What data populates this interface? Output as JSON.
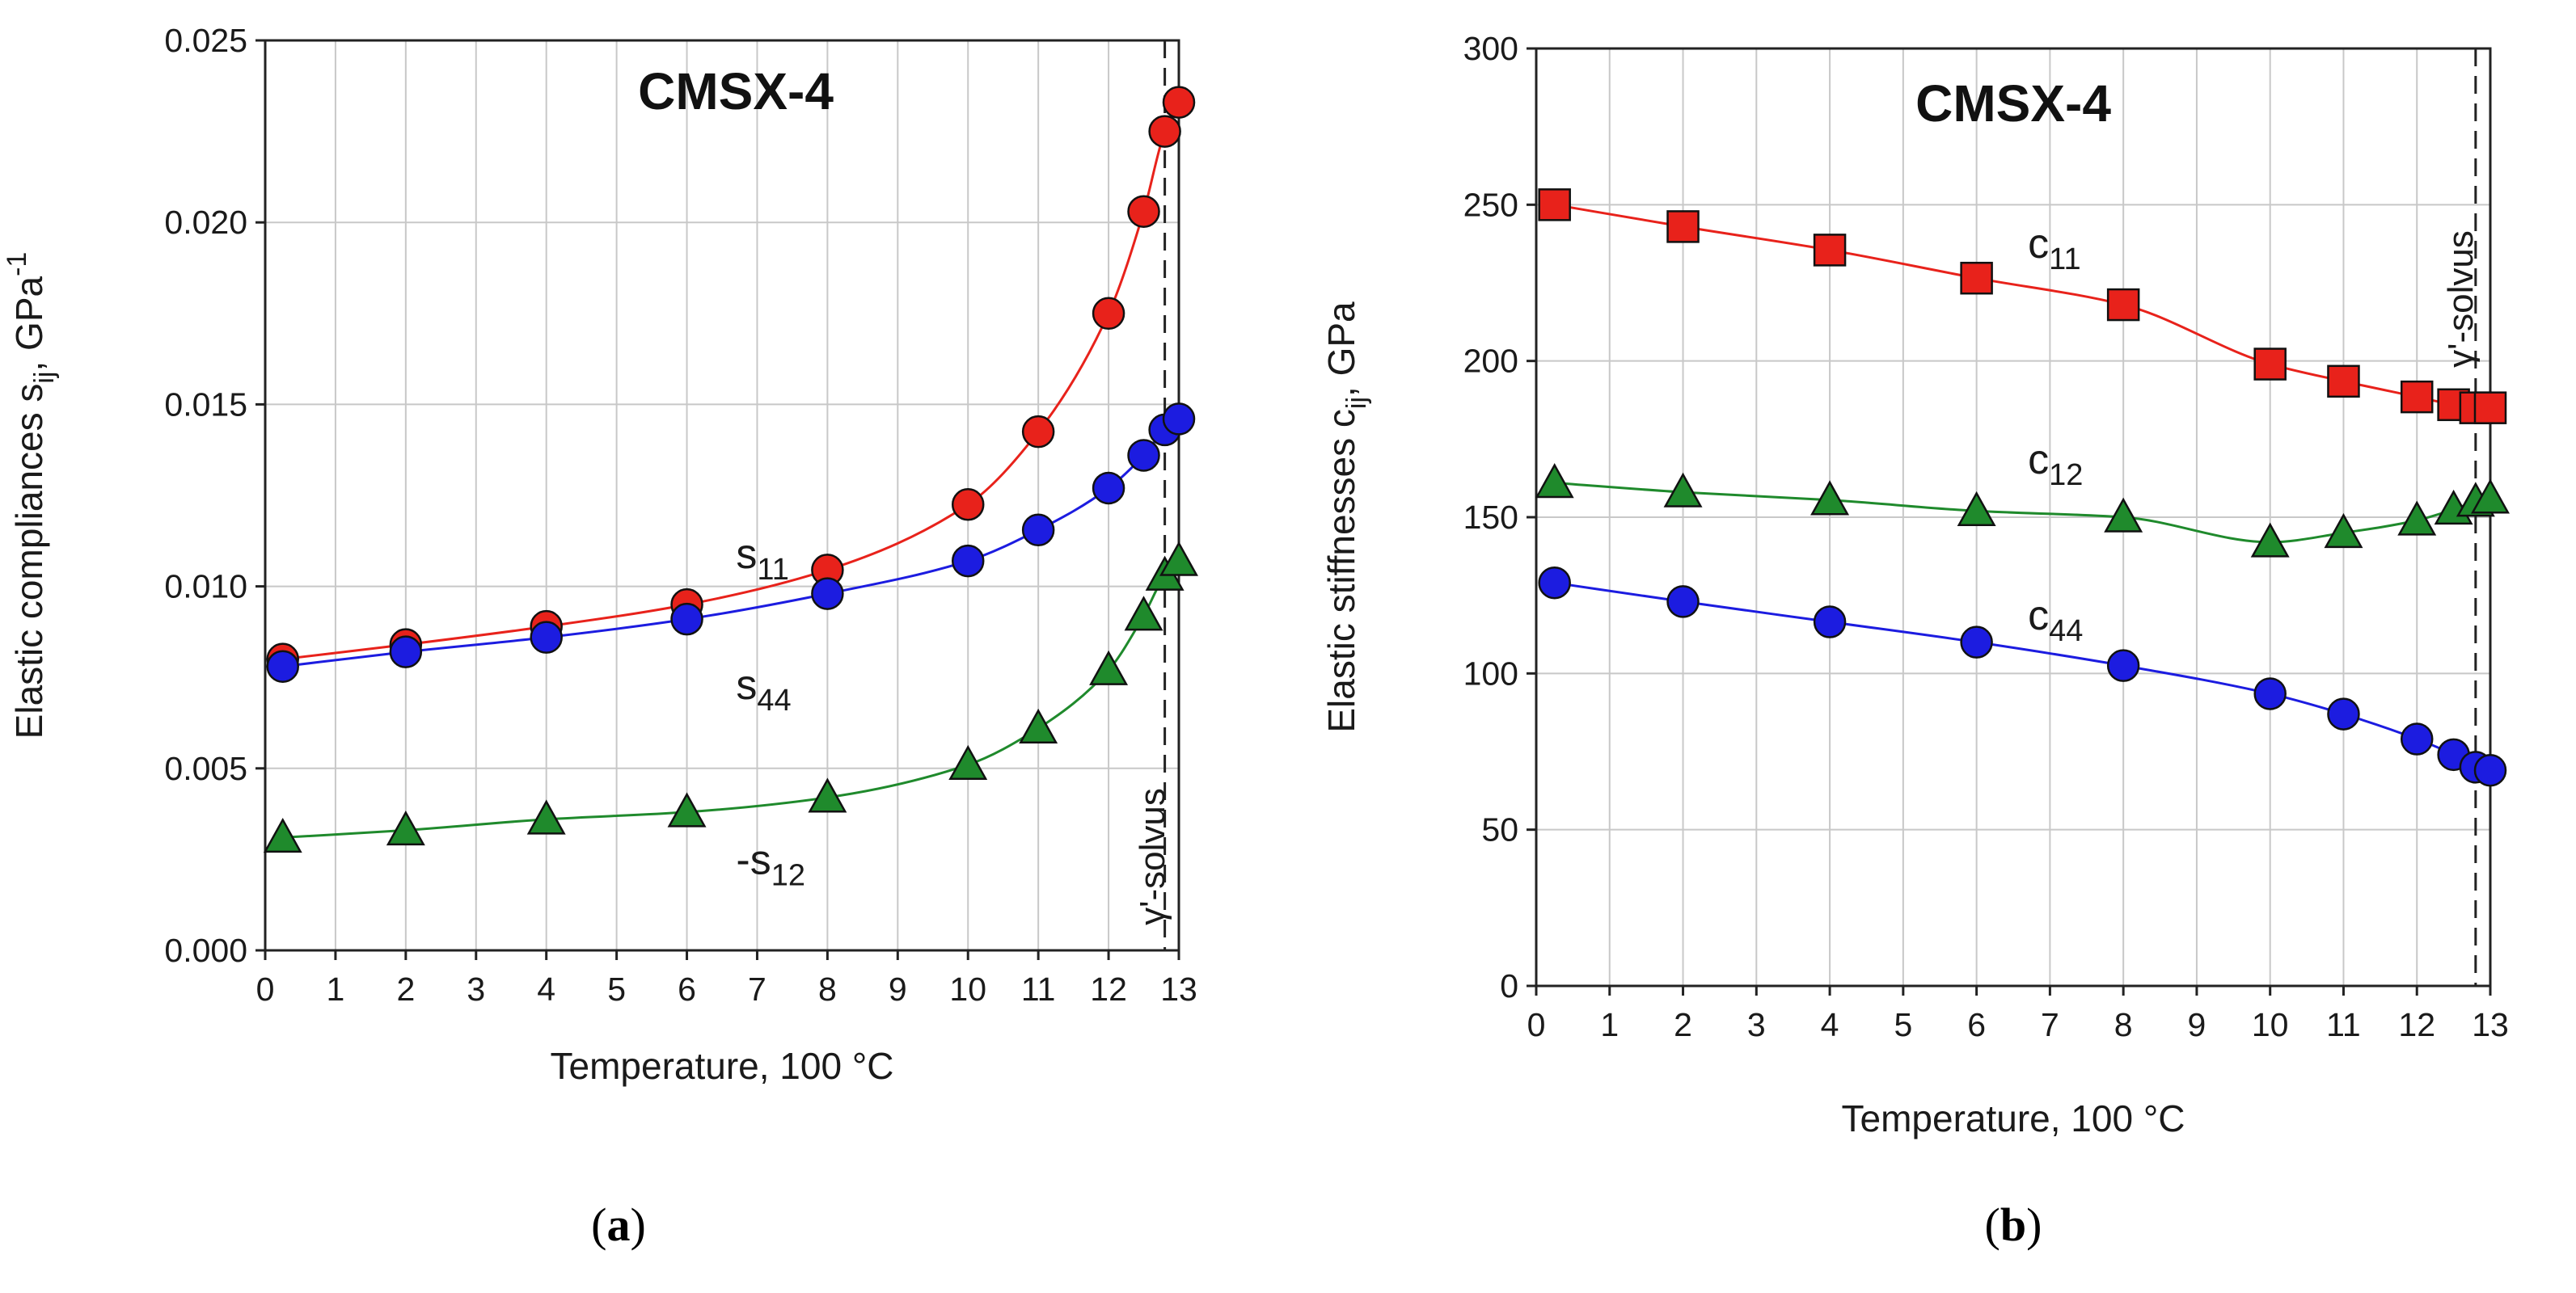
{
  "chart_data": [
    {
      "id": "a",
      "type": "line",
      "title": "CMSX-4",
      "panel_label": "a",
      "xlabel": "Temperature, 100 °C",
      "ylabel_main": "Elastic compliances s",
      "ylabel_sub": "ij",
      "ylabel_unit": ", GPa",
      "ylabel_sup": "-1",
      "xlim": [
        0,
        13
      ],
      "ylim": [
        0,
        0.025
      ],
      "x_ticks": [
        "0",
        "1",
        "2",
        "3",
        "4",
        "5",
        "6",
        "7",
        "8",
        "9",
        "10",
        "11",
        "12",
        "13"
      ],
      "y_ticks": [
        "0.000",
        "0.005",
        "0.010",
        "0.015",
        "0.020",
        "0.025"
      ],
      "y_tick_values": [
        0,
        0.005,
        0.01,
        0.015,
        0.02,
        0.025
      ],
      "vline": {
        "x": 12.8,
        "label": "γ'-solvus"
      },
      "series": [
        {
          "name": "s",
          "sub": "11",
          "prefix": "",
          "color": "#e8221b",
          "marker": "circle",
          "label_x": 6.7,
          "label_y": 0.0105,
          "x": [
            0.25,
            2,
            4,
            6,
            8,
            10,
            11,
            12,
            12.5,
            12.8,
            13
          ],
          "values": [
            0.008,
            0.0084,
            0.0089,
            0.0095,
            0.01045,
            0.01225,
            0.01425,
            0.0175,
            0.0203,
            0.0225,
            0.0233
          ]
        },
        {
          "name": "s",
          "sub": "44",
          "prefix": "",
          "color": "#1c1ce0",
          "marker": "circle",
          "label_x": 6.7,
          "label_y": 0.0069,
          "x": [
            0.25,
            2,
            4,
            6,
            8,
            10,
            11,
            12,
            12.5,
            12.8,
            13
          ],
          "values": [
            0.0078,
            0.0082,
            0.0086,
            0.0091,
            0.0098,
            0.0107,
            0.01155,
            0.0127,
            0.0136,
            0.0143,
            0.0146
          ]
        },
        {
          "name": "s",
          "sub": "12",
          "prefix": "-",
          "color": "#1f8a2c",
          "marker": "triangle",
          "label_x": 6.7,
          "label_y": 0.0021,
          "x": [
            0.25,
            2,
            4,
            6,
            8,
            10,
            11,
            12,
            12.5,
            12.8,
            13
          ],
          "values": [
            0.0031,
            0.0033,
            0.0036,
            0.0038,
            0.0042,
            0.0051,
            0.0061,
            0.0077,
            0.0092,
            0.0103,
            0.0107
          ]
        }
      ]
    },
    {
      "id": "b",
      "type": "line",
      "title": "CMSX-4",
      "panel_label": "b",
      "xlabel": "Temperature, 100 °C",
      "ylabel_main": "Elastic stiffnesses c",
      "ylabel_sub": "ij",
      "ylabel_unit": ", GPa",
      "ylabel_sup": "",
      "xlim": [
        0,
        13
      ],
      "ylim": [
        0,
        300
      ],
      "x_ticks": [
        "0",
        "1",
        "2",
        "3",
        "4",
        "5",
        "6",
        "7",
        "8",
        "9",
        "10",
        "11",
        "12",
        "13"
      ],
      "y_ticks": [
        "0",
        "50",
        "100",
        "150",
        "200",
        "250",
        "300"
      ],
      "y_tick_values": [
        0,
        50,
        100,
        150,
        200,
        250,
        300
      ],
      "vline": {
        "x": 12.8,
        "label": "γ'-solvus"
      },
      "series": [
        {
          "name": "c",
          "sub": "11",
          "prefix": "",
          "color": "#e8221b",
          "marker": "square",
          "label_x": 6.7,
          "label_y": 233,
          "x": [
            0.25,
            2,
            4,
            6,
            8,
            10,
            11,
            12,
            12.5,
            12.8,
            13
          ],
          "values": [
            250,
            243,
            235.5,
            226.5,
            218,
            199,
            193.5,
            188.5,
            186,
            185,
            185
          ]
        },
        {
          "name": "c",
          "sub": "12",
          "prefix": "",
          "color": "#1f8a2c",
          "marker": "triangle",
          "label_x": 6.7,
          "label_y": 164,
          "x": [
            0.25,
            2,
            4,
            6,
            8,
            10,
            11,
            12,
            12.5,
            12.8,
            13
          ],
          "values": [
            161,
            158,
            155.5,
            152,
            150,
            142,
            145,
            149,
            152.5,
            155,
            156
          ]
        },
        {
          "name": "c",
          "sub": "44",
          "prefix": "",
          "color": "#1c1ce0",
          "marker": "circle",
          "label_x": 6.7,
          "label_y": 114,
          "x": [
            0.25,
            2,
            4,
            6,
            8,
            10,
            11,
            12,
            12.5,
            12.8,
            13
          ],
          "values": [
            129,
            123,
            116.5,
            110,
            102.5,
            93.5,
            87,
            79,
            74,
            70,
            69
          ]
        }
      ]
    }
  ]
}
